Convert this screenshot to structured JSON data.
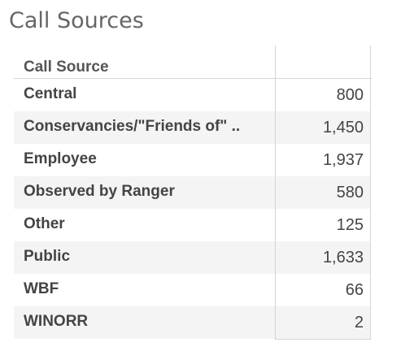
{
  "title": "Call Sources",
  "chart_data": {
    "type": "table",
    "title": "Call Sources",
    "columns": [
      "Call Source",
      ""
    ],
    "rows": [
      {
        "label": "Central",
        "value": "800"
      },
      {
        "label": "Conservancies/\"Friends of\" ..",
        "value": "1,450"
      },
      {
        "label": "Employee",
        "value": "1,937"
      },
      {
        "label": "Observed by Ranger",
        "value": "580"
      },
      {
        "label": "Other",
        "value": "125"
      },
      {
        "label": "Public",
        "value": "1,633"
      },
      {
        "label": "WBF",
        "value": "66"
      },
      {
        "label": "WINORR",
        "value": "2"
      }
    ]
  }
}
